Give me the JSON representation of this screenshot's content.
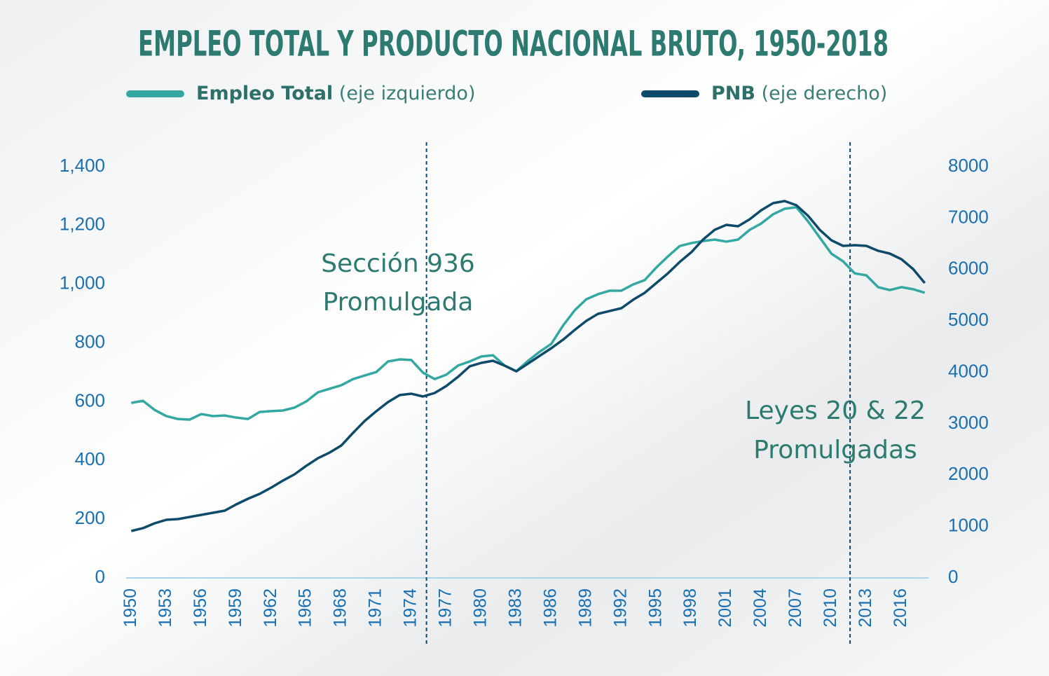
{
  "chart_data": {
    "type": "line",
    "title": "EMPLEO TOTAL Y PRODUCTO NACIONAL BRUTO, 1950-2018",
    "x": [
      1950,
      1951,
      1952,
      1953,
      1954,
      1955,
      1956,
      1957,
      1958,
      1959,
      1960,
      1961,
      1962,
      1963,
      1964,
      1965,
      1966,
      1967,
      1968,
      1969,
      1970,
      1971,
      1972,
      1973,
      1974,
      1975,
      1976,
      1977,
      1978,
      1979,
      1980,
      1981,
      1982,
      1983,
      1984,
      1985,
      1986,
      1987,
      1988,
      1989,
      1990,
      1991,
      1992,
      1993,
      1994,
      1995,
      1996,
      1997,
      1998,
      1999,
      2000,
      2001,
      2002,
      2003,
      2004,
      2005,
      2006,
      2007,
      2008,
      2009,
      2010,
      2011,
      2012,
      2013,
      2014,
      2015,
      2016,
      2017,
      2018
    ],
    "series": [
      {
        "name": "Empleo Total",
        "legend_note": "(eje izquierdo)",
        "color": "#33a8a2",
        "axis": "y",
        "values": [
          596,
          603,
          572,
          551,
          541,
          539,
          558,
          551,
          553,
          546,
          541,
          565,
          568,
          570,
          580,
          601,
          632,
          644,
          656,
          677,
          689,
          701,
          737,
          744,
          742,
          699,
          677,
          692,
          723,
          737,
          754,
          758,
          723,
          704,
          739,
          770,
          797,
          859,
          911,
          949,
          966,
          978,
          978,
          999,
          1014,
          1057,
          1095,
          1130,
          1140,
          1147,
          1152,
          1145,
          1152,
          1185,
          1207,
          1238,
          1257,
          1262,
          1214,
          1159,
          1104,
          1078,
          1037,
          1030,
          990,
          980,
          990,
          983,
          971
        ]
      },
      {
        "name": "PNB",
        "legend_note": "(eje derecho)",
        "color": "#0e4a6a",
        "axis": "y2",
        "values": [
          913,
          968,
          1063,
          1131,
          1145,
          1186,
          1227,
          1267,
          1308,
          1431,
          1540,
          1635,
          1758,
          1894,
          2017,
          2181,
          2330,
          2439,
          2576,
          2821,
          3053,
          3244,
          3421,
          3557,
          3584,
          3530,
          3598,
          3734,
          3911,
          4116,
          4184,
          4225,
          4129,
          4020,
          4170,
          4320,
          4470,
          4634,
          4824,
          5002,
          5138,
          5193,
          5247,
          5410,
          5547,
          5738,
          5928,
          6147,
          6337,
          6583,
          6773,
          6869,
          6842,
          6978,
          7155,
          7291,
          7332,
          7250,
          7046,
          6773,
          6569,
          6460,
          6474,
          6460,
          6365,
          6310,
          6201,
          6010,
          5738
        ]
      }
    ],
    "xlim": [
      1949.5,
      2018.5
    ],
    "xticks": [
      1950,
      1953,
      1956,
      1959,
      1962,
      1965,
      1968,
      1971,
      1974,
      1977,
      1980,
      1983,
      1986,
      1989,
      1992,
      1995,
      1998,
      2001,
      2004,
      2007,
      2010,
      2013,
      2016
    ],
    "ylim": [
      0,
      1400
    ],
    "yticks": [
      0,
      200,
      400,
      600,
      800,
      {
        "value": 1000,
        "label": "1,000"
      },
      {
        "value": 1200,
        "label": "1,200"
      },
      {
        "value": 1400,
        "label": "1,400"
      }
    ],
    "y2lim": [
      0,
      8000
    ],
    "y2ticks": [
      0,
      1000,
      2000,
      3000,
      4000,
      5000,
      6000,
      7000,
      8000
    ],
    "vlines": [
      1975.3,
      2011.6
    ],
    "annotations": [
      [
        "Sección 936",
        "Promulgada"
      ],
      [
        "Leyes 20 & 22",
        "Promulgadas"
      ]
    ],
    "grid": false
  }
}
